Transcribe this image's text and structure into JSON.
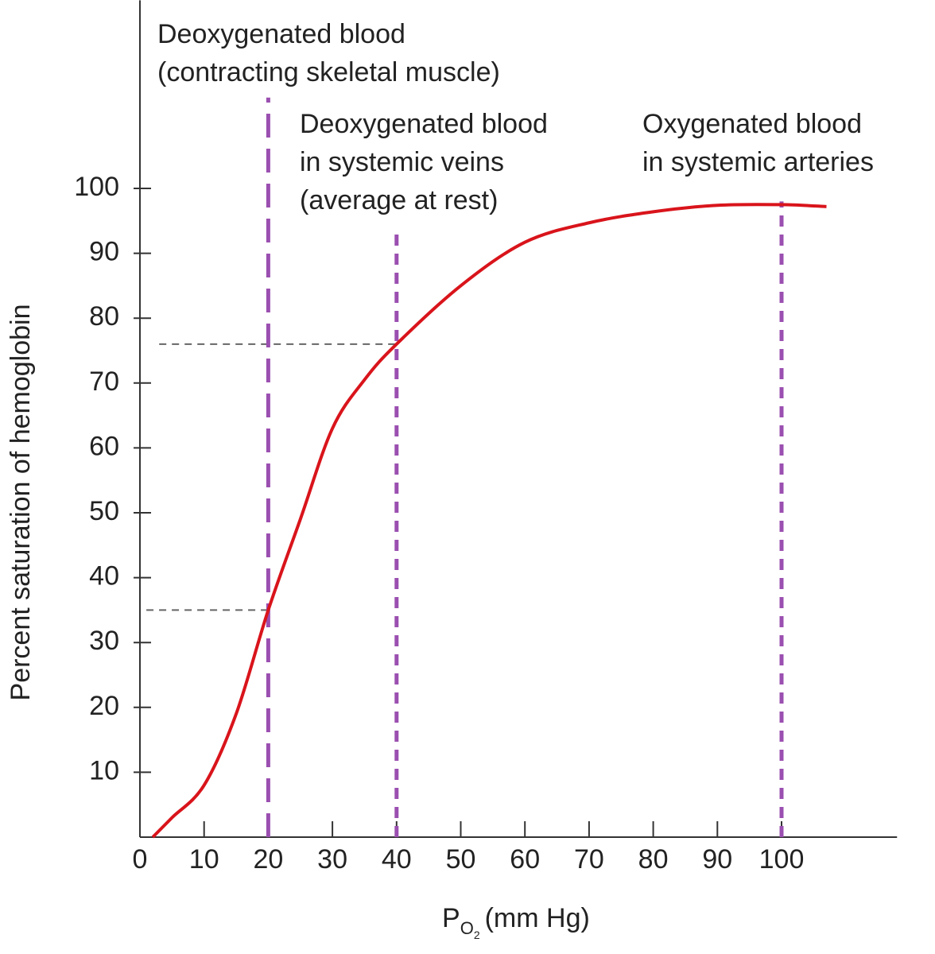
{
  "chart_data": {
    "type": "line",
    "xlabel": {
      "base": "P",
      "sub": "O",
      "subsub": "2",
      "unit": "(mm Hg)"
    },
    "ylabel": "Percent saturation of hemoglobin",
    "x": [
      2,
      5,
      10,
      15,
      20,
      25,
      30,
      35,
      40,
      50,
      60,
      70,
      80,
      90,
      100,
      107
    ],
    "series": [
      {
        "color": "#d9141b",
        "values": [
          0,
          3,
          8,
          19,
          35,
          49,
          63,
          70.5,
          76,
          85,
          91.7,
          94.7,
          96.4,
          97.4,
          97.5,
          97.2
        ]
      }
    ],
    "xlim": [
      0,
      118
    ],
    "ylim": [
      0,
      129
    ],
    "xticks": [
      0,
      10,
      20,
      30,
      40,
      50,
      60,
      70,
      80,
      90,
      100
    ],
    "yticks": [
      10,
      20,
      30,
      40,
      50,
      60,
      70,
      80,
      90,
      100
    ],
    "reference_color": "#9b4fb0",
    "vlines": [
      {
        "x": 20,
        "top": 114,
        "label": [
          "Deoxygenated blood",
          "(contracting skeletal muscle)"
        ]
      },
      {
        "x": 40,
        "top": 94,
        "label": [
          "Deoxygenated blood",
          "in systemic veins",
          "(average at rest)"
        ]
      },
      {
        "x": 100,
        "top": 98,
        "label": [
          "Oxygenated blood",
          "in systemic arteries"
        ]
      }
    ],
    "hlines": [
      {
        "y": 76,
        "from": 3,
        "to": 40
      },
      {
        "y": 35,
        "from": 1,
        "to": 20
      }
    ]
  }
}
